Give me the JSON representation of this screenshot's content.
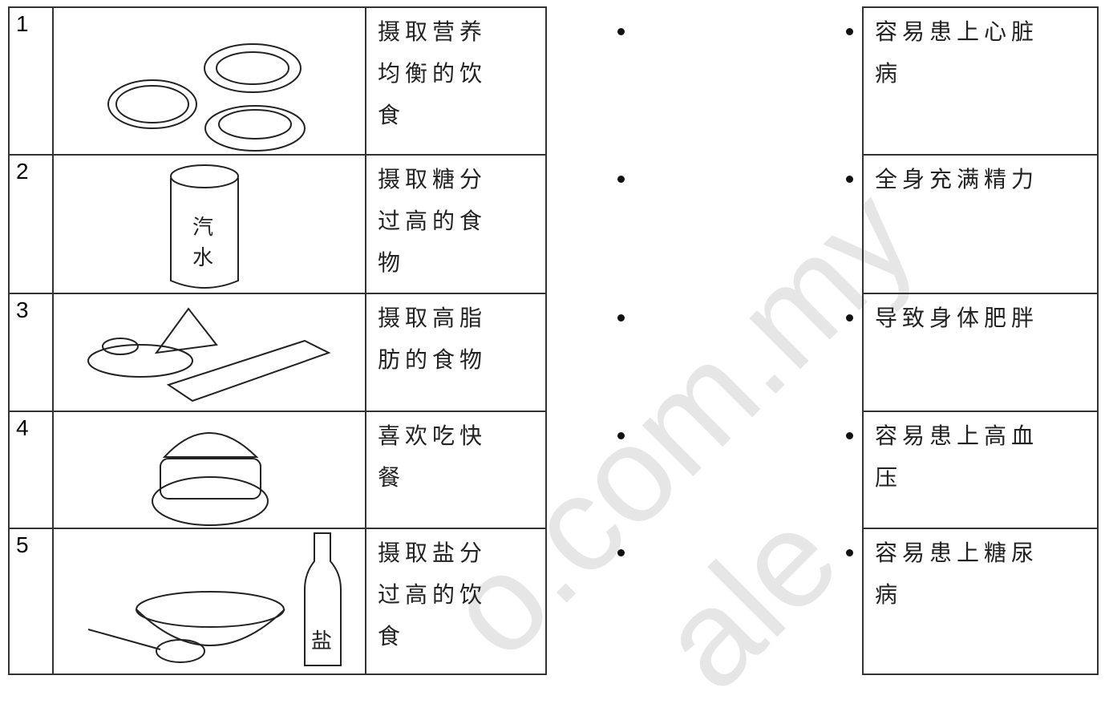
{
  "rows": [
    {
      "number": "1",
      "habit": "摄取营养均衡的饮食"
    },
    {
      "number": "2",
      "habit": "摄取糖分过高的食物"
    },
    {
      "number": "3",
      "habit": "摄取高脂肪的食物"
    },
    {
      "number": "4",
      "habit": "喜欢吃快餐"
    },
    {
      "number": "5",
      "habit": "摄取盐分过高的饮食"
    }
  ],
  "effects": [
    "容易患上心脏病",
    "全身充满精力",
    "导致身体肥胖",
    "容易患上高血压",
    "容易患上糖尿病"
  ],
  "images": {
    "can_top": "汽",
    "can_bottom": "水",
    "salt": "盐"
  },
  "watermark": [
    "o.com.my",
    "ale"
  ]
}
